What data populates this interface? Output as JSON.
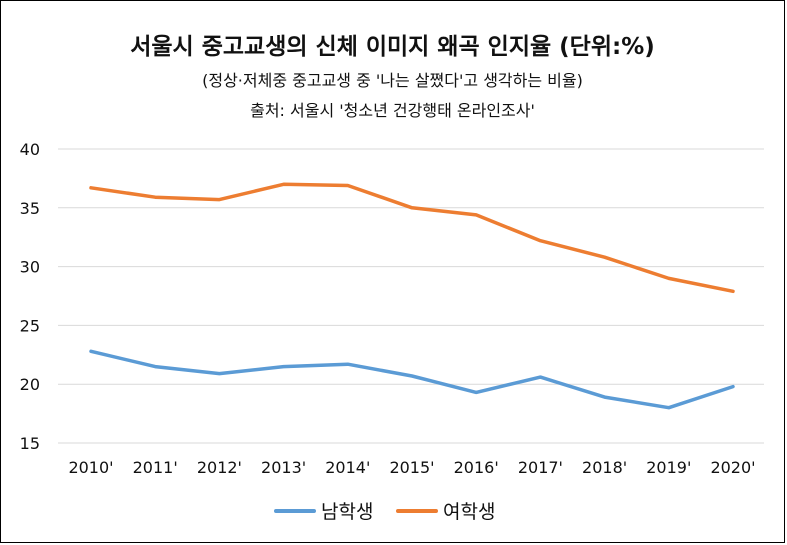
{
  "chart_data": {
    "type": "line",
    "title": "서울시 중고교생의 신체 이미지 왜곡 인지율 (단위:%)",
    "subtitle": "(정상·저체중 중고교생 중 '나는 살쪘다'고 생각하는 비율)",
    "source": "출처: 서울시 '청소년 건강행태 온라인조사'",
    "categories": [
      "2010'",
      "2011'",
      "2012'",
      "2013'",
      "2014'",
      "2015'",
      "2016'",
      "2017'",
      "2018'",
      "2019'",
      "2020'"
    ],
    "ylim": [
      15,
      40
    ],
    "yticks": [
      "15",
      "20",
      "25",
      "30",
      "35",
      "40"
    ],
    "grid": true,
    "legend_position": "bottom",
    "series": [
      {
        "name": "남학생",
        "color": "#5b9bd5",
        "values": [
          22.8,
          21.5,
          20.9,
          21.5,
          21.7,
          20.7,
          19.3,
          20.6,
          18.9,
          18.0,
          19.8
        ]
      },
      {
        "name": "여학생",
        "color": "#ed7d31",
        "values": [
          36.7,
          35.9,
          35.7,
          37.0,
          36.9,
          35.0,
          34.4,
          32.2,
          30.8,
          29.0,
          27.9
        ]
      }
    ]
  }
}
